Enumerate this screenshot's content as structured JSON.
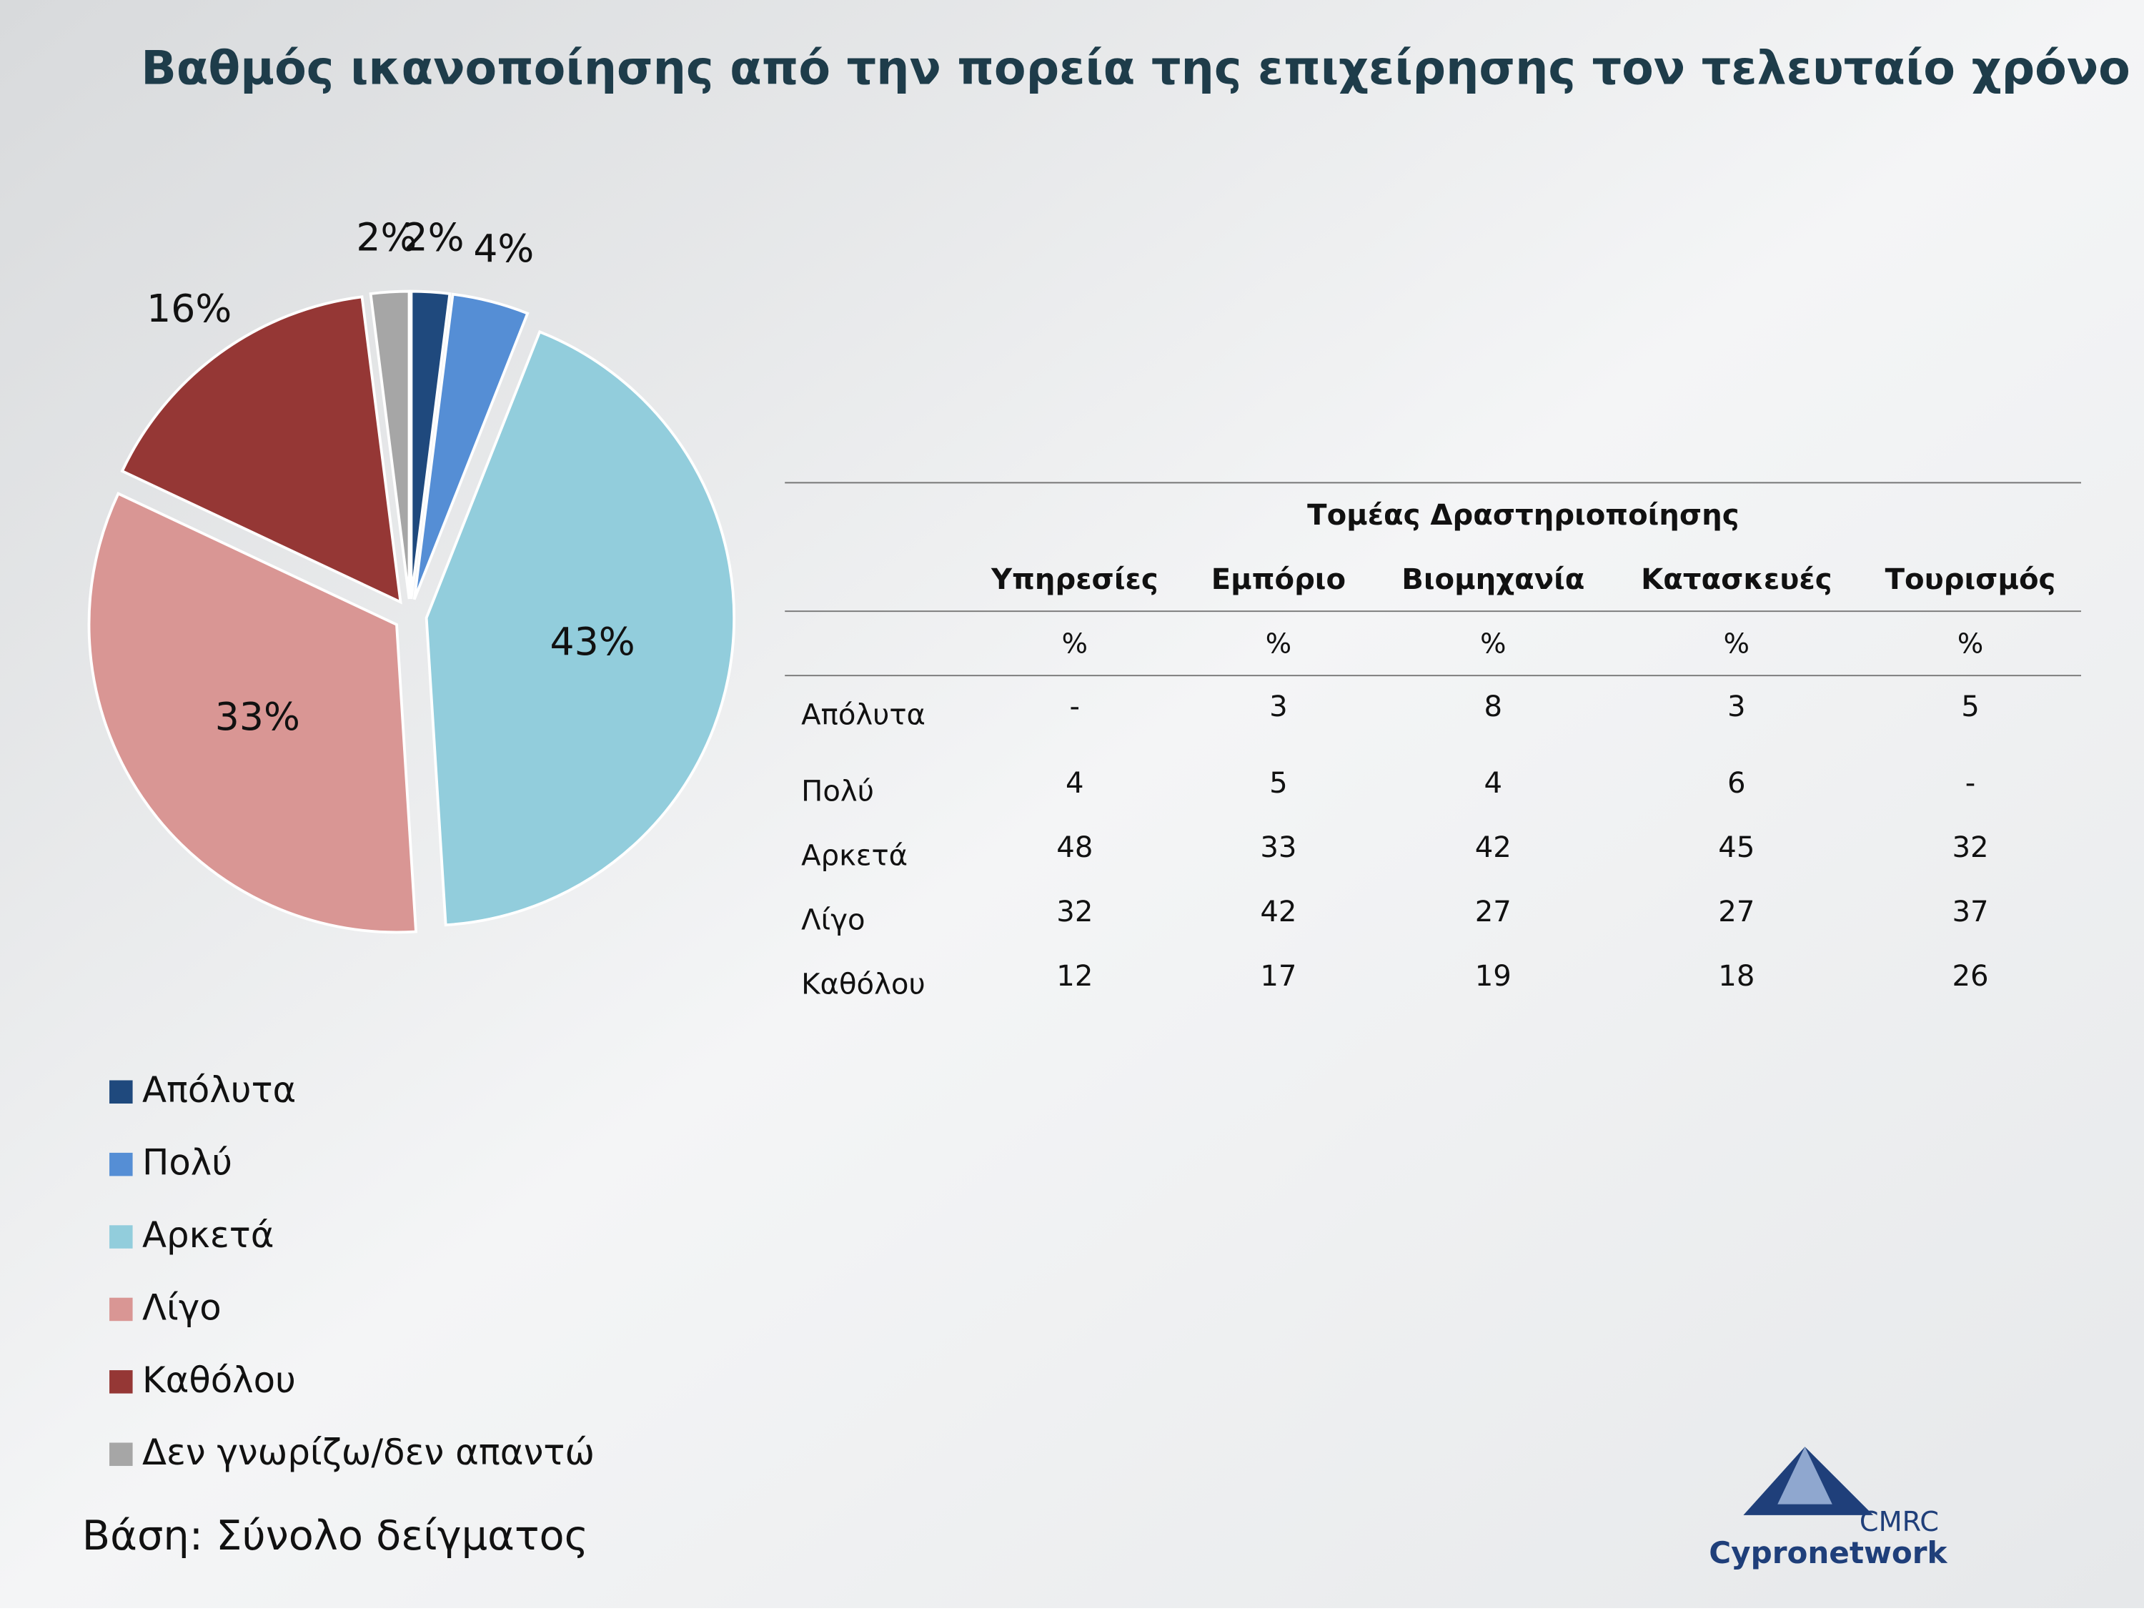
{
  "title": "Βαθμός ικανοποίησης από την πορεία της επιχείρησης τον τελευταίο χρόνο",
  "chart_data": {
    "type": "pie",
    "categories": [
      "Απόλυτα",
      "Πολύ",
      "Αρκετά",
      "Λίγο",
      "Καθόλου",
      "Δεν γνωρίζω/δεν απαντώ"
    ],
    "values": [
      2,
      4,
      43,
      33,
      16,
      2
    ],
    "value_labels": [
      "2%",
      "4%",
      "43%",
      "33%",
      "16%",
      "2%"
    ],
    "colors": [
      "#1f497d",
      "#558ed5",
      "#92cddc",
      "#d99694",
      "#953735",
      "#a6a6a6"
    ],
    "legend": "bottom-left"
  },
  "table": {
    "group_header": "Τομέας Δραστηριοποίησης",
    "columns": [
      "Υπηρεσίες",
      "Εμπόριο",
      "Βιομηχανία",
      "Κατασκευές",
      "Τουρισμός"
    ],
    "units": [
      "%",
      "%",
      "%",
      "%",
      "%"
    ],
    "rows": [
      [
        "Απόλυτα",
        "-",
        3,
        8,
        3,
        5
      ],
      [
        "Πολύ",
        4,
        5,
        4,
        6,
        "-"
      ],
      [
        "Αρκετά",
        48,
        33,
        42,
        45,
        32
      ],
      [
        "Λίγο",
        32,
        42,
        27,
        27,
        37
      ],
      [
        "Καθόλου",
        12,
        17,
        19,
        18,
        26
      ]
    ]
  },
  "footer": "Βάση: Σύνολο δείγματος",
  "logo": {
    "top": "CMRC",
    "bottom": "Cypronetwork"
  }
}
